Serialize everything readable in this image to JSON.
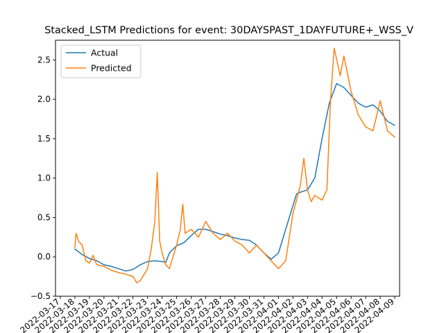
{
  "chart_data": {
    "type": "line",
    "title": "Stacked_LSTM Predictions for event: 30DAYSPAST_1DAYFUTURE+_WSS_V",
    "xlabel": "",
    "ylabel": "",
    "ylim": [
      -0.5,
      2.75
    ],
    "yticks": [
      -0.5,
      0.0,
      0.5,
      1.0,
      1.5,
      2.0,
      2.5
    ],
    "ytick_labels": [
      "−0.5",
      "0.0",
      "0.5",
      "1.0",
      "1.5",
      "2.0",
      "2.5"
    ],
    "xlim": [
      "2022-03-16T16:00",
      "2022-04-09T08:00"
    ],
    "x_tick_dates": [
      "2022-03-17",
      "2022-03-18",
      "2022-03-19",
      "2022-03-20",
      "2022-03-21",
      "2022-03-22",
      "2022-03-23",
      "2022-03-24",
      "2022-03-25",
      "2022-03-26",
      "2022-03-27",
      "2022-03-28",
      "2022-03-29",
      "2022-03-30",
      "2022-03-31",
      "2022-04-01",
      "2022-04-02",
      "2022-04-03",
      "2022-04-04",
      "2022-04-05",
      "2022-04-06",
      "2022-04-07",
      "2022-04-08",
      "2022-04-09"
    ],
    "x_tick_labels": [
      "2022-03-17",
      "2022-03-18",
      "2022-03-19",
      "2022-03-20",
      "2022-03-21",
      "2022-03-22",
      "2022-03-23",
      "2022-03-24",
      "2022-03-25",
      "2022-03-26",
      "2022-03-27",
      "2022-03-28",
      "2022-03-29",
      "2022-03-30",
      "2022-03-31",
      "2022-04-01",
      "2022-04-02",
      "2022-04-03",
      "2022-04-04",
      "2022-04-05",
      "2022-04-06",
      "2022-04-07",
      "2022-04-08",
      "2022-04-09"
    ],
    "legend": {
      "position": "top-left",
      "entries": [
        "Actual",
        "Predicted"
      ]
    },
    "grid": false,
    "series": [
      {
        "name": "Actual",
        "color": "#1f77b4",
        "points": [
          [
            "2022-03-18T00:00",
            0.1
          ],
          [
            "2022-03-18T12:00",
            0.03
          ],
          [
            "2022-03-19T00:00",
            -0.02
          ],
          [
            "2022-03-19T12:00",
            -0.05
          ],
          [
            "2022-03-20T00:00",
            -0.1
          ],
          [
            "2022-03-20T12:00",
            -0.12
          ],
          [
            "2022-03-21T00:00",
            -0.15
          ],
          [
            "2022-03-21T12:00",
            -0.18
          ],
          [
            "2022-03-22T00:00",
            -0.16
          ],
          [
            "2022-03-22T12:00",
            -0.1
          ],
          [
            "2022-03-23T00:00",
            -0.06
          ],
          [
            "2022-03-23T12:00",
            -0.05
          ],
          [
            "2022-03-24T00:00",
            -0.06
          ],
          [
            "2022-03-24T06:00",
            -0.07
          ],
          [
            "2022-03-24T12:00",
            0.05
          ],
          [
            "2022-03-25T00:00",
            0.14
          ],
          [
            "2022-03-25T12:00",
            0.18
          ],
          [
            "2022-03-26T00:00",
            0.27
          ],
          [
            "2022-03-26T12:00",
            0.35
          ],
          [
            "2022-03-27T00:00",
            0.35
          ],
          [
            "2022-03-27T12:00",
            0.32
          ],
          [
            "2022-03-28T00:00",
            0.29
          ],
          [
            "2022-03-28T12:00",
            0.27
          ],
          [
            "2022-03-29T00:00",
            0.24
          ],
          [
            "2022-03-29T12:00",
            0.22
          ],
          [
            "2022-03-30T00:00",
            0.21
          ],
          [
            "2022-03-30T12:00",
            0.15
          ],
          [
            "2022-03-31T00:00",
            0.05
          ],
          [
            "2022-03-31T12:00",
            -0.03
          ],
          [
            "2022-04-01T00:00",
            0.05
          ],
          [
            "2022-04-01T12:00",
            0.35
          ],
          [
            "2022-04-02T00:00",
            0.65
          ],
          [
            "2022-04-02T06:00",
            0.8
          ],
          [
            "2022-04-02T12:00",
            0.82
          ],
          [
            "2022-04-03T00:00",
            0.85
          ],
          [
            "2022-04-03T12:00",
            1.0
          ],
          [
            "2022-04-04T00:00",
            1.5
          ],
          [
            "2022-04-04T12:00",
            1.95
          ],
          [
            "2022-04-05T00:00",
            2.2
          ],
          [
            "2022-04-05T12:00",
            2.15
          ],
          [
            "2022-04-06T00:00",
            2.05
          ],
          [
            "2022-04-06T12:00",
            1.95
          ],
          [
            "2022-04-07T00:00",
            1.9
          ],
          [
            "2022-04-07T12:00",
            1.93
          ],
          [
            "2022-04-08T00:00",
            1.85
          ],
          [
            "2022-04-08T12:00",
            1.72
          ],
          [
            "2022-04-09T00:00",
            1.67
          ]
        ]
      },
      {
        "name": "Predicted",
        "color": "#ff7f0e",
        "points": [
          [
            "2022-03-18T00:00",
            0.12
          ],
          [
            "2022-03-18T02:00",
            0.3
          ],
          [
            "2022-03-18T06:00",
            0.2
          ],
          [
            "2022-03-18T12:00",
            0.15
          ],
          [
            "2022-03-18T18:00",
            -0.05
          ],
          [
            "2022-03-19T00:00",
            -0.08
          ],
          [
            "2022-03-19T06:00",
            0.02
          ],
          [
            "2022-03-19T12:00",
            -0.1
          ],
          [
            "2022-03-20T00:00",
            -0.12
          ],
          [
            "2022-03-20T12:00",
            -0.17
          ],
          [
            "2022-03-21T00:00",
            -0.2
          ],
          [
            "2022-03-21T12:00",
            -0.22
          ],
          [
            "2022-03-22T00:00",
            -0.25
          ],
          [
            "2022-03-22T06:00",
            -0.33
          ],
          [
            "2022-03-22T12:00",
            -0.3
          ],
          [
            "2022-03-23T00:00",
            -0.15
          ],
          [
            "2022-03-23T06:00",
            0.1
          ],
          [
            "2022-03-23T12:00",
            0.45
          ],
          [
            "2022-03-23T16:00",
            1.07
          ],
          [
            "2022-03-23T20:00",
            0.2
          ],
          [
            "2022-03-24T00:00",
            0.05
          ],
          [
            "2022-03-24T06:00",
            -0.1
          ],
          [
            "2022-03-24T12:00",
            -0.15
          ],
          [
            "2022-03-25T00:00",
            0.15
          ],
          [
            "2022-03-25T06:00",
            0.35
          ],
          [
            "2022-03-25T10:00",
            0.67
          ],
          [
            "2022-03-25T14:00",
            0.3
          ],
          [
            "2022-03-26T00:00",
            0.35
          ],
          [
            "2022-03-26T12:00",
            0.25
          ],
          [
            "2022-03-27T00:00",
            0.45
          ],
          [
            "2022-03-27T12:00",
            0.3
          ],
          [
            "2022-03-28T00:00",
            0.22
          ],
          [
            "2022-03-28T12:00",
            0.3
          ],
          [
            "2022-03-29T00:00",
            0.2
          ],
          [
            "2022-03-29T12:00",
            0.15
          ],
          [
            "2022-03-30T00:00",
            0.05
          ],
          [
            "2022-03-30T12:00",
            0.15
          ],
          [
            "2022-03-31T00:00",
            0.05
          ],
          [
            "2022-03-31T12:00",
            -0.05
          ],
          [
            "2022-04-01T00:00",
            -0.15
          ],
          [
            "2022-04-01T12:00",
            -0.05
          ],
          [
            "2022-04-02T00:00",
            0.55
          ],
          [
            "2022-04-02T12:00",
            0.9
          ],
          [
            "2022-04-02T18:00",
            1.25
          ],
          [
            "2022-04-03T00:00",
            0.85
          ],
          [
            "2022-04-03T06:00",
            0.7
          ],
          [
            "2022-04-03T12:00",
            0.78
          ],
          [
            "2022-04-04T00:00",
            0.72
          ],
          [
            "2022-04-04T08:00",
            0.85
          ],
          [
            "2022-04-04T14:00",
            2.0
          ],
          [
            "2022-04-04T20:00",
            2.65
          ],
          [
            "2022-04-05T06:00",
            2.3
          ],
          [
            "2022-04-05T12:00",
            2.55
          ],
          [
            "2022-04-06T00:00",
            2.1
          ],
          [
            "2022-04-06T12:00",
            1.8
          ],
          [
            "2022-04-07T00:00",
            1.65
          ],
          [
            "2022-04-07T12:00",
            1.6
          ],
          [
            "2022-04-08T00:00",
            1.98
          ],
          [
            "2022-04-08T12:00",
            1.6
          ],
          [
            "2022-04-09T00:00",
            1.52
          ]
        ]
      }
    ]
  }
}
